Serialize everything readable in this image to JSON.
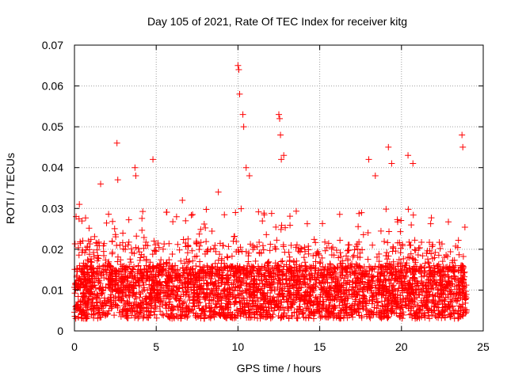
{
  "chart_data": {
    "type": "scatter",
    "title": "Day 105 of 2021, Rate Of TEC Index for receiver kitg",
    "xlabel": "GPS time / hours",
    "ylabel": "ROTI / TECUs",
    "xlim": [
      0,
      25
    ],
    "ylim": [
      0,
      0.07
    ],
    "xticks": [
      "0",
      "5",
      "10",
      "15",
      "20",
      "25"
    ],
    "yticks": [
      "0",
      "0.01",
      "0.02",
      "0.03",
      "0.04",
      "0.05",
      "0.06",
      "0.07"
    ],
    "xtick_values": [
      0,
      5,
      10,
      15,
      20,
      25
    ],
    "ytick_values": [
      0,
      0.01,
      0.02,
      0.03,
      0.04,
      0.05,
      0.06,
      0.07
    ],
    "grid": true,
    "marker": "+",
    "marker_color": "#ff0000",
    "series": [
      {
        "name": "ROTI",
        "note": "dense cloud, ~0.002-0.02 TECU baseline over 0-24 h; selected visible outliers listed",
        "x": [
          0.1,
          0.3,
          1.6,
          2.6,
          2.65,
          3.7,
          3.75,
          4.8,
          6.6,
          8.8,
          10.0,
          10.05,
          10.1,
          10.3,
          10.35,
          10.5,
          10.7,
          12.5,
          12.55,
          12.6,
          12.65,
          12.8,
          18.0,
          18.4,
          19.2,
          19.4,
          20.4,
          20.7,
          23.7,
          23.75
        ],
        "y": [
          0.028,
          0.031,
          0.036,
          0.046,
          0.037,
          0.04,
          0.038,
          0.042,
          0.032,
          0.034,
          0.065,
          0.064,
          0.058,
          0.053,
          0.05,
          0.04,
          0.038,
          0.053,
          0.052,
          0.048,
          0.042,
          0.043,
          0.042,
          0.038,
          0.045,
          0.041,
          0.043,
          0.041,
          0.048,
          0.045
        ]
      }
    ]
  }
}
